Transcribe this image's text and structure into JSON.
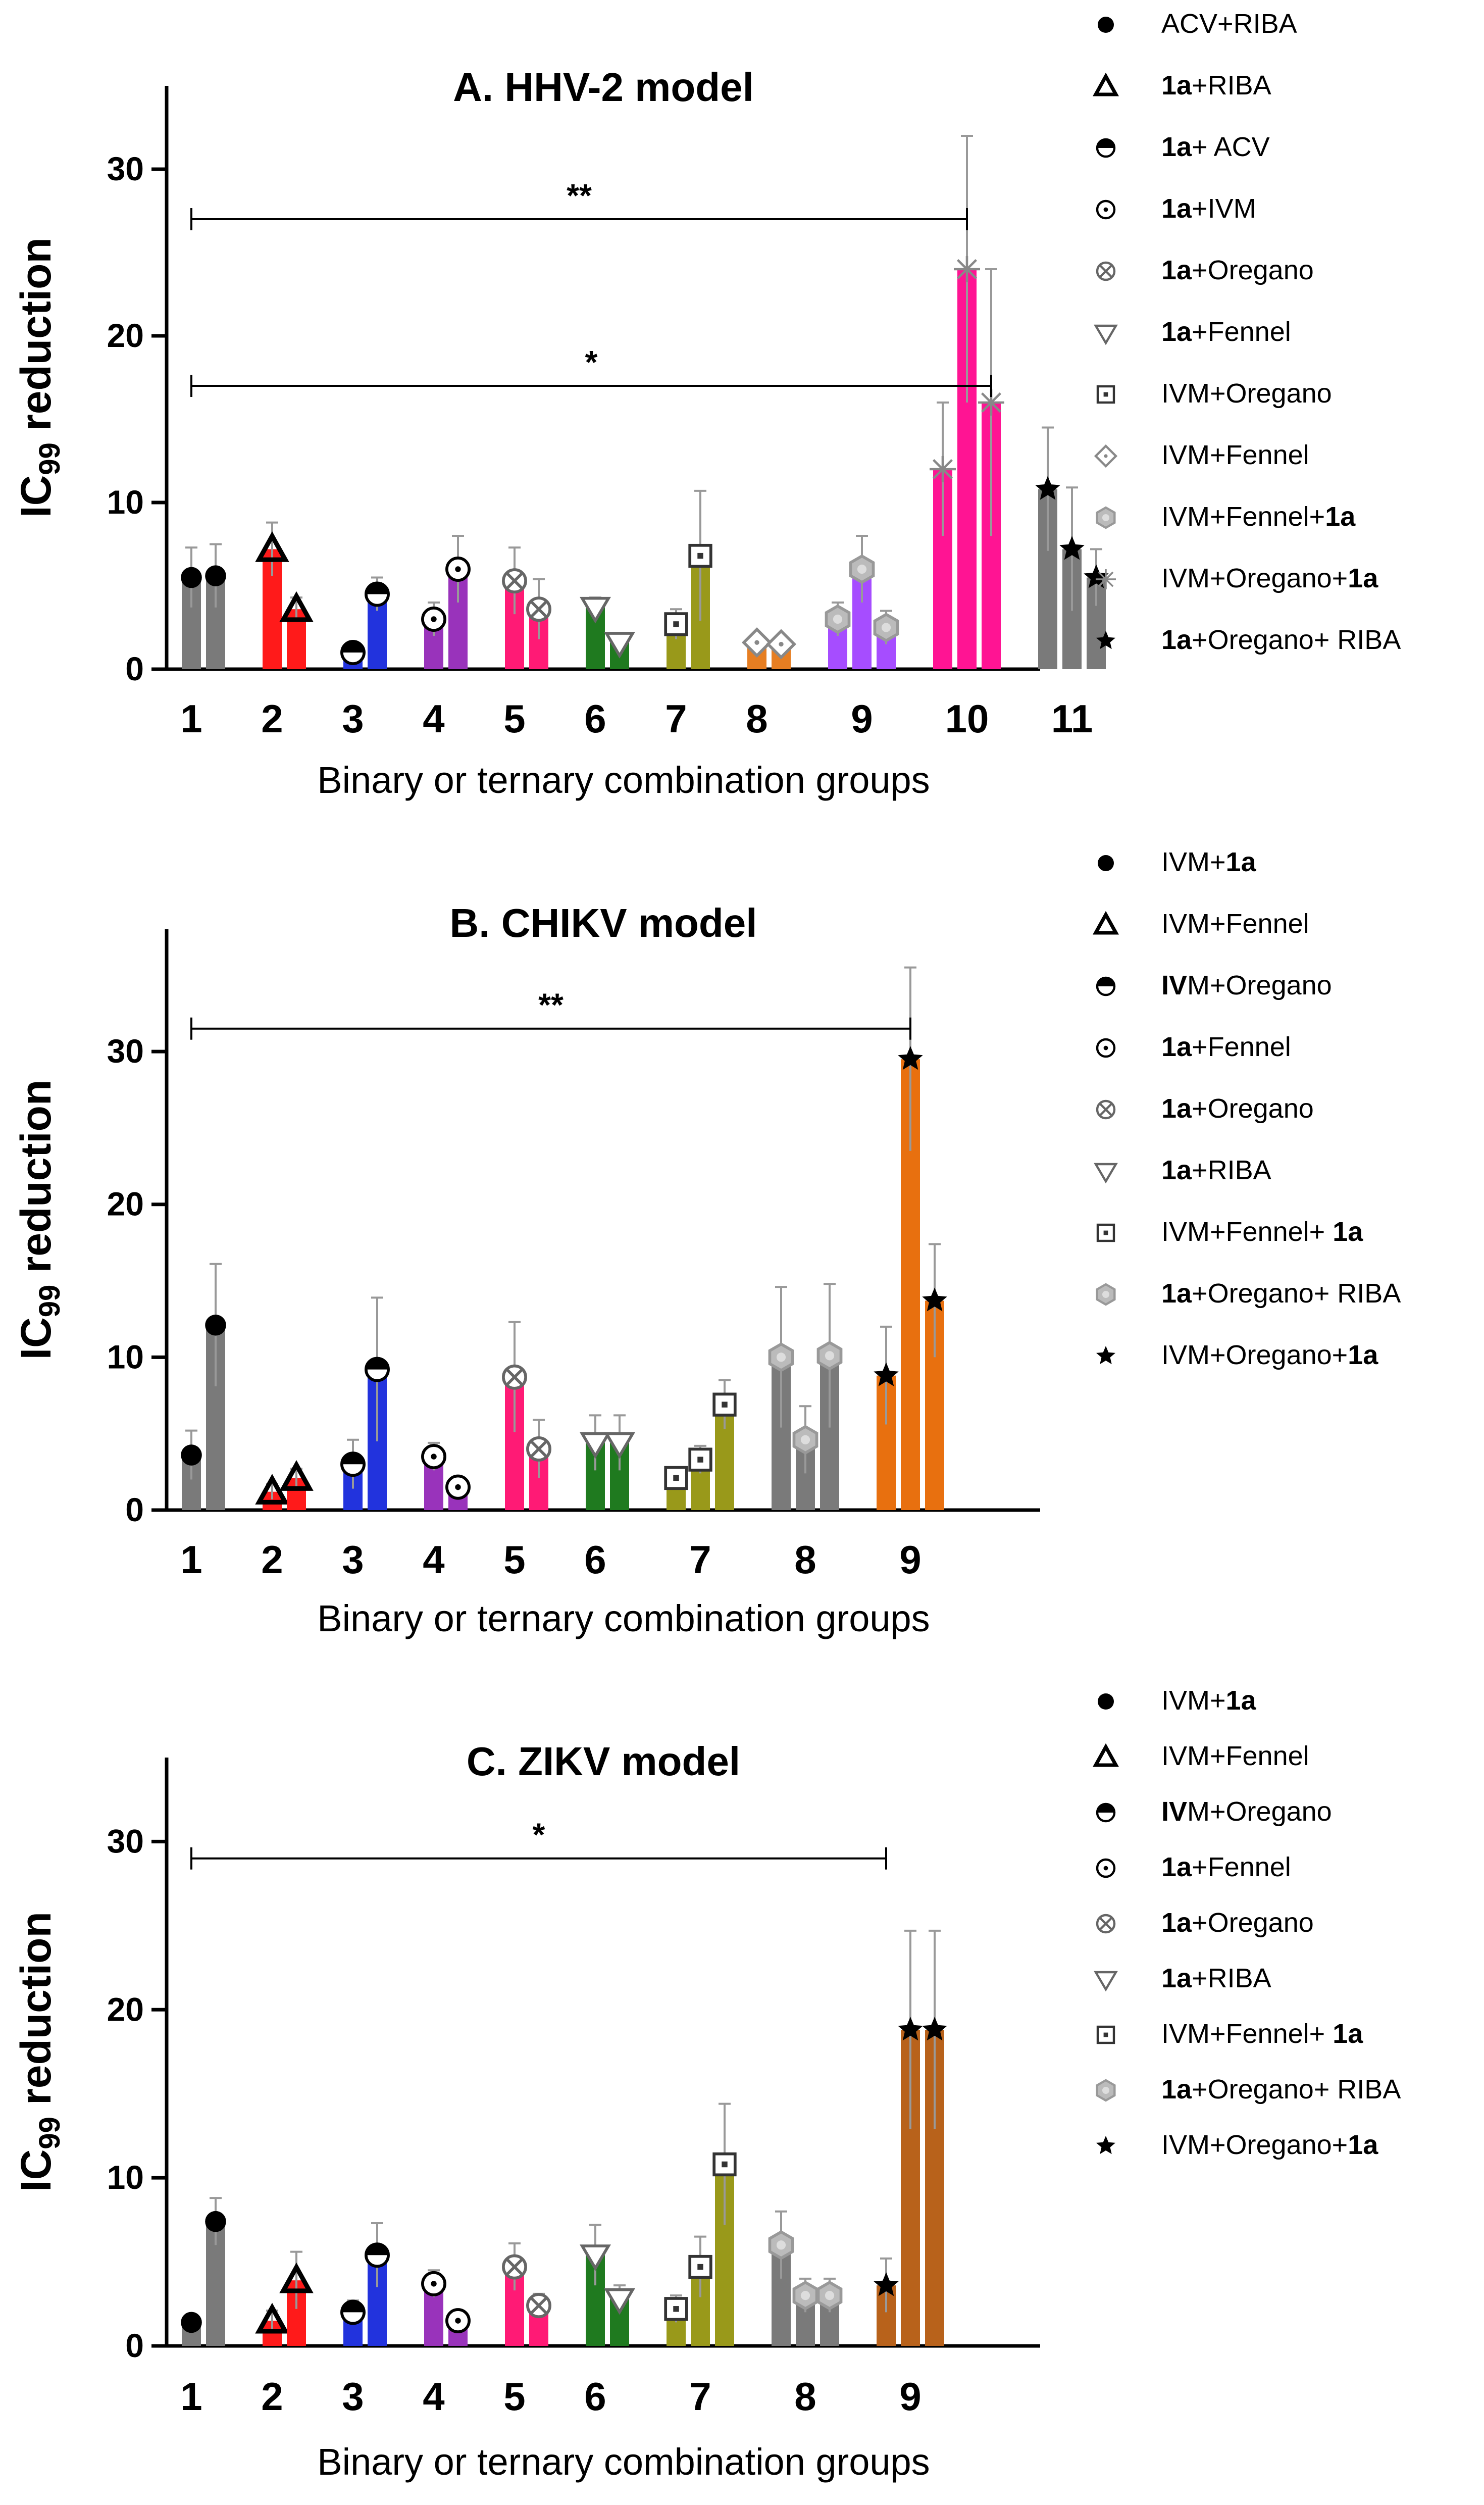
{
  "palette": {
    "gray": "#7a7a7a",
    "red": "#ff1a1a",
    "blue": "#2233dd",
    "purple": "#9933bb",
    "pink": "#ff1a75",
    "green": "#1f7a1f",
    "olive": "#99991a",
    "orange": "#e67e22",
    "violet": "#a64dff",
    "magenta": "#ff1493",
    "brown": "#b8621b",
    "darkorange": "#e8700f"
  },
  "chart_data": [
    {
      "type": "bar",
      "title": "A. HHV-2 model",
      "ylabel": "IC99 reduction",
      "ylabel_main": "IC",
      "ylabel_sub": "99",
      "ylabel_rest": " reduction",
      "xlabel": "Binary or ternary combination groups",
      "ylim": [
        0,
        35
      ],
      "yticks": [
        "0",
        "10",
        "20",
        "30"
      ],
      "groups": [
        {
          "label": "1",
          "color": "gray",
          "bars": [
            {
              "v": 5.5,
              "e": 1.8,
              "m": "circle"
            },
            {
              "v": 5.6,
              "e": 1.9,
              "m": "circle"
            }
          ]
        },
        {
          "label": "2",
          "color": "red",
          "bars": [
            {
              "v": 7.2,
              "e": 1.6,
              "m": "triangle"
            },
            {
              "v": 3.6,
              "e": 0.7,
              "m": "triangle"
            }
          ]
        },
        {
          "label": "3",
          "color": "blue",
          "bars": [
            {
              "v": 1.0,
              "e": 0.4,
              "m": "halfcircle"
            },
            {
              "v": 4.5,
              "e": 1.0,
              "m": "halfcircle"
            }
          ]
        },
        {
          "label": "4",
          "color": "purple",
          "bars": [
            {
              "v": 3.0,
              "e": 1.0,
              "m": "dotcircle"
            },
            {
              "v": 6.0,
              "e": 2.0,
              "m": "dotcircle"
            }
          ]
        },
        {
          "label": "5",
          "color": "pink",
          "bars": [
            {
              "v": 5.3,
              "e": 2.0,
              "m": "crosscircle"
            },
            {
              "v": 3.6,
              "e": 1.8,
              "m": "crosscircle"
            }
          ]
        },
        {
          "label": "6",
          "color": "green",
          "bars": [
            {
              "v": 3.7,
              "e": 0.6,
              "m": "triangledown"
            },
            {
              "v": 1.6,
              "e": 0.5,
              "m": "triangledown"
            }
          ]
        },
        {
          "label": "7",
          "color": "olive",
          "bars": [
            {
              "v": 2.7,
              "e": 0.9,
              "m": "square"
            },
            {
              "v": 6.8,
              "e": 3.9,
              "m": "square"
            }
          ]
        },
        {
          "label": "8",
          "color": "orange",
          "bars": [
            {
              "v": 1.6,
              "e": 0.4,
              "m": "diamond"
            },
            {
              "v": 1.5,
              "e": 0.3,
              "m": "diamond"
            }
          ]
        },
        {
          "label": "9",
          "color": "violet",
          "bars": [
            {
              "v": 3.0,
              "e": 1.0,
              "m": "hexagon"
            },
            {
              "v": 6.0,
              "e": 2.0,
              "m": "hexagon"
            },
            {
              "v": 2.5,
              "e": 1.0,
              "m": "hexagon"
            }
          ]
        },
        {
          "label": "10",
          "color": "magenta",
          "bars": [
            {
              "v": 12.0,
              "e": 4.0,
              "m": "asterisk"
            },
            {
              "v": 24.0,
              "e": 8.0,
              "m": "asterisk"
            },
            {
              "v": 16.0,
              "e": 8.0,
              "m": "asterisk"
            }
          ]
        },
        {
          "label": "11",
          "color": "gray",
          "bars": [
            {
              "v": 10.8,
              "e": 3.7,
              "m": "star"
            },
            {
              "v": 7.2,
              "e": 3.7,
              "m": "star"
            },
            {
              "v": 5.5,
              "e": 1.7,
              "m": "star"
            }
          ]
        }
      ],
      "significance": [
        {
          "label": "**",
          "from_group": 0,
          "to_bar": [
            9,
            1
          ],
          "y": 27
        },
        {
          "label": "*",
          "from_group": 0,
          "to_bar": [
            9,
            2
          ],
          "y": 17
        }
      ],
      "legend": [
        {
          "m": "circle",
          "prefix": "",
          "bold": "",
          "suffix": "ACV+RIBA"
        },
        {
          "m": "triangle",
          "prefix": "",
          "bold": "1a",
          "suffix": "+RIBA"
        },
        {
          "m": "halfcircle",
          "prefix": "",
          "bold": "1a",
          "suffix": "+ ACV"
        },
        {
          "m": "dotcircle",
          "prefix": "",
          "bold": "1a",
          "suffix": "+IVM"
        },
        {
          "m": "crosscircle",
          "prefix": "",
          "bold": "1a",
          "suffix": "+Oregano"
        },
        {
          "m": "triangledown",
          "prefix": "",
          "bold": "1a",
          "suffix": "+Fennel"
        },
        {
          "m": "square",
          "prefix": "IVM+Oregano",
          "bold": "",
          "suffix": ""
        },
        {
          "m": "diamond",
          "prefix": " IVM+Fennel",
          "bold": "",
          "suffix": ""
        },
        {
          "m": "hexagon",
          "prefix": " IVM+Fennel+",
          "bold": "1a",
          "suffix": ""
        },
        {
          "m": "asterisk",
          "prefix": "IVM+Oregano+",
          "bold": "1a",
          "suffix": ""
        },
        {
          "m": "star",
          "prefix": " ",
          "bold": "1a",
          "suffix": "+Oregano+ RIBA"
        }
      ]
    },
    {
      "type": "bar",
      "title": "B. CHIKV model",
      "ylabel": "IC99 reduction",
      "ylabel_main": "IC",
      "ylabel_sub": "99",
      "ylabel_rest": " reduction",
      "xlabel": "Binary or ternary combination groups",
      "ylim": [
        0,
        38
      ],
      "yticks": [
        "0",
        "10",
        "20",
        "30"
      ],
      "groups": [
        {
          "label": "1",
          "color": "gray",
          "bars": [
            {
              "v": 3.6,
              "e": 1.6,
              "m": "circle"
            },
            {
              "v": 12.1,
              "e": 4.0,
              "m": "circle"
            }
          ]
        },
        {
          "label": "2",
          "color": "red",
          "bars": [
            {
              "v": 1.2,
              "e": 0.5,
              "m": "triangle"
            },
            {
              "v": 2.1,
              "e": 0.6,
              "m": "triangle"
            }
          ]
        },
        {
          "label": "3",
          "color": "blue",
          "bars": [
            {
              "v": 3.0,
              "e": 1.6,
              "m": "halfcircle"
            },
            {
              "v": 9.2,
              "e": 4.7,
              "m": "halfcircle"
            }
          ]
        },
        {
          "label": "4",
          "color": "purple",
          "bars": [
            {
              "v": 3.5,
              "e": 0.9,
              "m": "dotcircle"
            },
            {
              "v": 1.5,
              "e": 0.5,
              "m": "dotcircle"
            }
          ]
        },
        {
          "label": "5",
          "color": "pink",
          "bars": [
            {
              "v": 8.7,
              "e": 3.6,
              "m": "crosscircle"
            },
            {
              "v": 4.0,
              "e": 1.9,
              "m": "crosscircle"
            }
          ]
        },
        {
          "label": "6",
          "color": "green",
          "bars": [
            {
              "v": 4.4,
              "e": 1.8,
              "m": "triangledown"
            },
            {
              "v": 4.4,
              "e": 1.8,
              "m": "triangledown"
            }
          ]
        },
        {
          "label": "7",
          "color": "olive",
          "bars": [
            {
              "v": 2.1,
              "e": 0.7,
              "m": "square"
            },
            {
              "v": 3.3,
              "e": 0.9,
              "m": "square"
            },
            {
              "v": 6.9,
              "e": 1.6,
              "m": "square"
            }
          ]
        },
        {
          "label": "8",
          "color": "gray",
          "bars": [
            {
              "v": 10.0,
              "e": 4.6,
              "m": "hexagon"
            },
            {
              "v": 4.6,
              "e": 2.2,
              "m": "hexagon"
            },
            {
              "v": 10.1,
              "e": 4.7,
              "m": "hexagon"
            }
          ]
        },
        {
          "label": "9",
          "color": "darkorange",
          "bars": [
            {
              "v": 8.8,
              "e": 3.2,
              "m": "star"
            },
            {
              "v": 29.5,
              "e": 6.0,
              "m": "star"
            },
            {
              "v": 13.7,
              "e": 3.7,
              "m": "star"
            }
          ]
        }
      ],
      "significance": [
        {
          "label": "**",
          "from_group": 0,
          "to_bar": [
            8,
            1
          ],
          "y": 31.5
        }
      ],
      "legend": [
        {
          "m": "circle",
          "prefix": "IVM+",
          "bold": "1a",
          "suffix": ""
        },
        {
          "m": "triangle",
          "prefix": " IVM+Fennel",
          "bold": "",
          "suffix": ""
        },
        {
          "m": "halfcircle",
          "prefix": "",
          "bold": "IV",
          "suffix": "M+Oregano"
        },
        {
          "m": "dotcircle",
          "prefix": "",
          "bold": "1a",
          "suffix": "+Fennel"
        },
        {
          "m": "crosscircle",
          "prefix": "",
          "bold": "1a",
          "suffix": "+Oregano"
        },
        {
          "m": "triangledown",
          "prefix": "",
          "bold": "1a",
          "suffix": "+RIBA"
        },
        {
          "m": "square",
          "prefix": " IVM+Fennel+ ",
          "bold": "1a",
          "suffix": ""
        },
        {
          "m": "hexagon",
          "prefix": " ",
          "bold": "1a",
          "suffix": "+Oregano+ RIBA"
        },
        {
          "m": "star",
          "prefix": "IVM+Oregano+",
          "bold": "1a",
          "suffix": ""
        }
      ]
    },
    {
      "type": "bar",
      "title": "C. ZIKV model",
      "ylabel": "IC99 reduction",
      "ylabel_main": "IC",
      "ylabel_sub": "99",
      "ylabel_rest": " reduction",
      "xlabel": "Binary or ternary combination groups",
      "ylim": [
        0,
        35
      ],
      "yticks": [
        "0",
        "10",
        "20",
        "30"
      ],
      "groups": [
        {
          "label": "1",
          "color": "gray",
          "bars": [
            {
              "v": 1.4,
              "e": 0.3,
              "m": "circle"
            },
            {
              "v": 7.4,
              "e": 1.4,
              "m": "circle"
            }
          ]
        },
        {
          "label": "2",
          "color": "red",
          "bars": [
            {
              "v": 1.5,
              "e": 0.6,
              "m": "triangle"
            },
            {
              "v": 3.9,
              "e": 1.7,
              "m": "triangle"
            }
          ]
        },
        {
          "label": "3",
          "color": "blue",
          "bars": [
            {
              "v": 2.0,
              "e": 0.7,
              "m": "halfcircle"
            },
            {
              "v": 5.4,
              "e": 1.9,
              "m": "halfcircle"
            }
          ]
        },
        {
          "label": "4",
          "color": "purple",
          "bars": [
            {
              "v": 3.7,
              "e": 0.8,
              "m": "dotcircle"
            },
            {
              "v": 1.5,
              "e": 0.5,
              "m": "dotcircle"
            }
          ]
        },
        {
          "label": "5",
          "color": "pink",
          "bars": [
            {
              "v": 4.7,
              "e": 1.4,
              "m": "crosscircle"
            },
            {
              "v": 2.4,
              "e": 0.7,
              "m": "crosscircle"
            }
          ]
        },
        {
          "label": "6",
          "color": "green",
          "bars": [
            {
              "v": 5.4,
              "e": 1.8,
              "m": "triangledown"
            },
            {
              "v": 2.8,
              "e": 0.8,
              "m": "triangledown"
            }
          ]
        },
        {
          "label": "7",
          "color": "olive",
          "bars": [
            {
              "v": 2.2,
              "e": 0.8,
              "m": "square"
            },
            {
              "v": 4.7,
              "e": 1.8,
              "m": "square"
            },
            {
              "v": 10.8,
              "e": 3.6,
              "m": "square"
            }
          ]
        },
        {
          "label": "8",
          "color": "gray",
          "bars": [
            {
              "v": 6.0,
              "e": 2.0,
              "m": "hexagon"
            },
            {
              "v": 3.0,
              "e": 1.0,
              "m": "hexagon"
            },
            {
              "v": 3.0,
              "e": 1.0,
              "m": "hexagon"
            }
          ]
        },
        {
          "label": "9",
          "color": "brown",
          "bars": [
            {
              "v": 3.6,
              "e": 1.6,
              "m": "star"
            },
            {
              "v": 18.8,
              "e": 5.9,
              "m": "star"
            },
            {
              "v": 18.8,
              "e": 5.9,
              "m": "star"
            }
          ]
        }
      ],
      "significance": [
        {
          "label": "*",
          "from_group": 0,
          "to_bar": [
            8,
            0
          ],
          "y": 29
        }
      ],
      "legend": [
        {
          "m": "circle",
          "prefix": "IVM+",
          "bold": "1a",
          "suffix": ""
        },
        {
          "m": "triangle",
          "prefix": " IVM+Fennel",
          "bold": "",
          "suffix": ""
        },
        {
          "m": "halfcircle",
          "prefix": "",
          "bold": "IV",
          "suffix": "M+Oregano"
        },
        {
          "m": "dotcircle",
          "prefix": "",
          "bold": "1a",
          "suffix": "+Fennel"
        },
        {
          "m": "crosscircle",
          "prefix": "",
          "bold": "1a",
          "suffix": "+Oregano"
        },
        {
          "m": "triangledown",
          "prefix": "",
          "bold": "1a",
          "suffix": "+RIBA"
        },
        {
          "m": "square",
          "prefix": " IVM+Fennel+ ",
          "bold": "1a",
          "suffix": ""
        },
        {
          "m": "hexagon",
          "prefix": " ",
          "bold": "1a",
          "suffix": "+Oregano+ RIBA"
        },
        {
          "m": "star",
          "prefix": "IVM+Oregano+",
          "bold": "1a",
          "suffix": ""
        }
      ]
    }
  ]
}
